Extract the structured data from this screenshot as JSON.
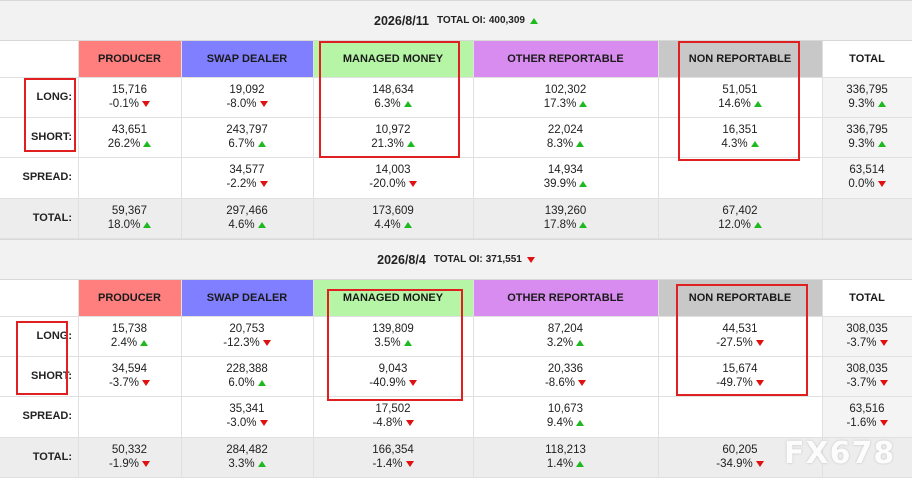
{
  "columns": [
    {
      "label": "PRODUCER",
      "color": "#ff7f7f"
    },
    {
      "label": "SWAP DEALER",
      "color": "#7f7fff"
    },
    {
      "label": "MANAGED MONEY",
      "color": "#b6f5a6"
    },
    {
      "label": "OTHER REPORTABLE",
      "color": "#d98cf0"
    },
    {
      "label": "NON REPORTABLE",
      "color": "#c8c8c8"
    },
    {
      "label": "TOTAL",
      "color": "#ffffff"
    }
  ],
  "row_labels": {
    "long": "LONG:",
    "short": "SHORT:",
    "spread": "SPREAD:",
    "total": "TOTAL:"
  },
  "reports": [
    {
      "date": "2026/8/11",
      "total_oi_label": "TOTAL OI:",
      "total_oi": "400,309",
      "total_oi_dir": "up",
      "long": [
        [
          "15,716",
          "-0.1%",
          "down"
        ],
        [
          "19,092",
          "-8.0%",
          "down"
        ],
        [
          "148,634",
          "6.3%",
          "up"
        ],
        [
          "102,302",
          "17.3%",
          "up"
        ],
        [
          "51,051",
          "14.6%",
          "up"
        ],
        [
          "336,795",
          "9.3%",
          "up"
        ]
      ],
      "short": [
        [
          "43,651",
          "26.2%",
          "up"
        ],
        [
          "243,797",
          "6.7%",
          "up"
        ],
        [
          "10,972",
          "21.3%",
          "up"
        ],
        [
          "22,024",
          "8.3%",
          "up"
        ],
        [
          "16,351",
          "4.3%",
          "up"
        ],
        [
          "336,795",
          "9.3%",
          "up"
        ]
      ],
      "spread": [
        null,
        [
          "34,577",
          "-2.2%",
          "down"
        ],
        [
          "14,003",
          "-20.0%",
          "down"
        ],
        [
          "14,934",
          "39.9%",
          "up"
        ],
        null,
        [
          "63,514",
          "0.0%",
          "down"
        ]
      ],
      "total": [
        [
          "59,367",
          "18.0%",
          "up"
        ],
        [
          "297,466",
          "4.6%",
          "up"
        ],
        [
          "173,609",
          "4.4%",
          "up"
        ],
        [
          "139,260",
          "17.8%",
          "up"
        ],
        [
          "67,402",
          "12.0%",
          "up"
        ],
        null
      ]
    },
    {
      "date": "2026/8/4",
      "total_oi_label": "TOTAL OI:",
      "total_oi": "371,551",
      "total_oi_dir": "down",
      "long": [
        [
          "15,738",
          "2.4%",
          "up"
        ],
        [
          "20,753",
          "-12.3%",
          "down"
        ],
        [
          "139,809",
          "3.5%",
          "up"
        ],
        [
          "87,204",
          "3.2%",
          "up"
        ],
        [
          "44,531",
          "-27.5%",
          "down"
        ],
        [
          "308,035",
          "-3.7%",
          "down"
        ]
      ],
      "short": [
        [
          "34,594",
          "-3.7%",
          "down"
        ],
        [
          "228,388",
          "6.0%",
          "up"
        ],
        [
          "9,043",
          "-40.9%",
          "down"
        ],
        [
          "20,336",
          "-8.6%",
          "down"
        ],
        [
          "15,674",
          "-49.7%",
          "down"
        ],
        [
          "308,035",
          "-3.7%",
          "down"
        ]
      ],
      "spread": [
        null,
        [
          "35,341",
          "-3.0%",
          "down"
        ],
        [
          "17,502",
          "-4.8%",
          "down"
        ],
        [
          "10,673",
          "9.4%",
          "up"
        ],
        null,
        [
          "63,516",
          "-1.6%",
          "down"
        ]
      ],
      "total": [
        [
          "50,332",
          "-1.9%",
          "down"
        ],
        [
          "284,482",
          "3.3%",
          "up"
        ],
        [
          "166,354",
          "-1.4%",
          "down"
        ],
        [
          "118,213",
          "1.4%",
          "up"
        ],
        [
          "60,205",
          "-34.9%",
          "down"
        ],
        null
      ]
    }
  ],
  "watermark": "FX678"
}
